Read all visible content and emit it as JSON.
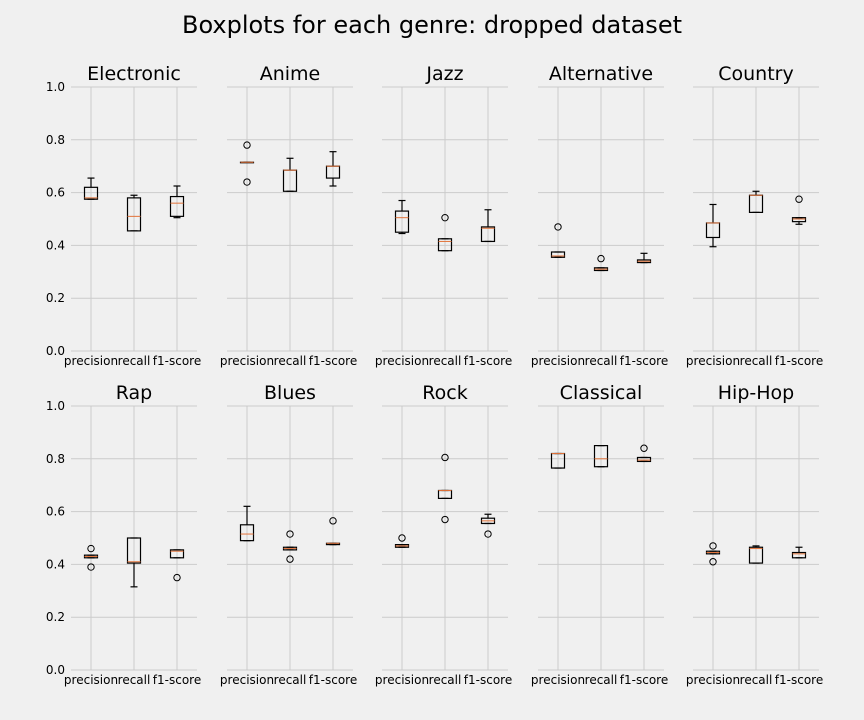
{
  "figure": {
    "title": "Boxplots for each genre: dropped dataset"
  },
  "chart_data": {
    "type": "boxplot",
    "title": "Boxplots for each genre: dropped dataset",
    "categories": [
      "precision",
      "recall",
      "f1-score"
    ],
    "ylim": [
      0.0,
      1.0
    ],
    "yticks": [
      "0.0",
      "0.2",
      "0.4",
      "0.6",
      "0.8",
      "1.0"
    ],
    "grid": true,
    "panels": [
      {
        "title": "Electronic",
        "boxes": [
          {
            "whislo": 0.575,
            "q1": 0.575,
            "med": 0.58,
            "q3": 0.62,
            "whishi": 0.655,
            "fliers": []
          },
          {
            "whislo": 0.455,
            "q1": 0.455,
            "med": 0.51,
            "q3": 0.58,
            "whishi": 0.59,
            "fliers": []
          },
          {
            "whislo": 0.505,
            "q1": 0.51,
            "med": 0.56,
            "q3": 0.585,
            "whishi": 0.625,
            "fliers": []
          }
        ]
      },
      {
        "title": "Anime",
        "boxes": [
          {
            "whislo": 0.715,
            "q1": 0.715,
            "med": 0.715,
            "q3": 0.715,
            "whishi": 0.715,
            "fliers": [
              0.78,
              0.64
            ]
          },
          {
            "whislo": 0.605,
            "q1": 0.605,
            "med": 0.685,
            "q3": 0.685,
            "whishi": 0.73,
            "fliers": []
          },
          {
            "whislo": 0.625,
            "q1": 0.655,
            "med": 0.7,
            "q3": 0.7,
            "whishi": 0.755,
            "fliers": []
          }
        ]
      },
      {
        "title": "Jazz",
        "boxes": [
          {
            "whislo": 0.445,
            "q1": 0.45,
            "med": 0.505,
            "q3": 0.53,
            "whishi": 0.57,
            "fliers": []
          },
          {
            "whislo": 0.38,
            "q1": 0.38,
            "med": 0.415,
            "q3": 0.425,
            "whishi": 0.425,
            "fliers": [
              0.505
            ]
          },
          {
            "whislo": 0.415,
            "q1": 0.415,
            "med": 0.465,
            "q3": 0.47,
            "whishi": 0.535,
            "fliers": []
          }
        ]
      },
      {
        "title": "Alternative",
        "boxes": [
          {
            "whislo": 0.355,
            "q1": 0.355,
            "med": 0.36,
            "q3": 0.375,
            "whishi": 0.375,
            "fliers": [
              0.47
            ]
          },
          {
            "whislo": 0.305,
            "q1": 0.305,
            "med": 0.31,
            "q3": 0.315,
            "whishi": 0.315,
            "fliers": [
              0.35
            ]
          },
          {
            "whislo": 0.335,
            "q1": 0.335,
            "med": 0.34,
            "q3": 0.345,
            "whishi": 0.37,
            "fliers": []
          }
        ]
      },
      {
        "title": "Country",
        "boxes": [
          {
            "whislo": 0.395,
            "q1": 0.43,
            "med": 0.485,
            "q3": 0.485,
            "whishi": 0.555,
            "fliers": []
          },
          {
            "whislo": 0.525,
            "q1": 0.525,
            "med": 0.59,
            "q3": 0.59,
            "whishi": 0.605,
            "fliers": []
          },
          {
            "whislo": 0.48,
            "q1": 0.49,
            "med": 0.5,
            "q3": 0.505,
            "whishi": 0.505,
            "fliers": [
              0.575
            ]
          }
        ]
      },
      {
        "title": "Rap",
        "boxes": [
          {
            "whislo": 0.425,
            "q1": 0.425,
            "med": 0.43,
            "q3": 0.435,
            "whishi": 0.435,
            "fliers": [
              0.46,
              0.39
            ]
          },
          {
            "whislo": 0.315,
            "q1": 0.405,
            "med": 0.41,
            "q3": 0.5,
            "whishi": 0.5,
            "fliers": []
          },
          {
            "whislo": 0.425,
            "q1": 0.425,
            "med": 0.45,
            "q3": 0.455,
            "whishi": 0.455,
            "fliers": [
              0.35
            ]
          }
        ]
      },
      {
        "title": "Blues",
        "boxes": [
          {
            "whislo": 0.49,
            "q1": 0.49,
            "med": 0.515,
            "q3": 0.55,
            "whishi": 0.62,
            "fliers": []
          },
          {
            "whislo": 0.455,
            "q1": 0.455,
            "med": 0.46,
            "q3": 0.465,
            "whishi": 0.465,
            "fliers": [
              0.515,
              0.42
            ]
          },
          {
            "whislo": 0.475,
            "q1": 0.475,
            "med": 0.48,
            "q3": 0.48,
            "whishi": 0.48,
            "fliers": [
              0.565
            ]
          }
        ]
      },
      {
        "title": "Rock",
        "boxes": [
          {
            "whislo": 0.465,
            "q1": 0.465,
            "med": 0.47,
            "q3": 0.475,
            "whishi": 0.475,
            "fliers": [
              0.5
            ]
          },
          {
            "whislo": 0.65,
            "q1": 0.65,
            "med": 0.68,
            "q3": 0.68,
            "whishi": 0.68,
            "fliers": [
              0.805,
              0.57
            ]
          },
          {
            "whislo": 0.555,
            "q1": 0.555,
            "med": 0.565,
            "q3": 0.575,
            "whishi": 0.59,
            "fliers": [
              0.515
            ]
          }
        ]
      },
      {
        "title": "Classical",
        "boxes": [
          {
            "whislo": 0.765,
            "q1": 0.765,
            "med": 0.82,
            "q3": 0.82,
            "whishi": 0.82,
            "fliers": []
          },
          {
            "whislo": 0.77,
            "q1": 0.77,
            "med": 0.8,
            "q3": 0.85,
            "whishi": 0.85,
            "fliers": []
          },
          {
            "whislo": 0.79,
            "q1": 0.79,
            "med": 0.795,
            "q3": 0.805,
            "whishi": 0.805,
            "fliers": [
              0.84
            ]
          }
        ]
      },
      {
        "title": "Hip-Hop",
        "boxes": [
          {
            "whislo": 0.44,
            "q1": 0.44,
            "med": 0.445,
            "q3": 0.45,
            "whishi": 0.45,
            "fliers": [
              0.47,
              0.41
            ]
          },
          {
            "whislo": 0.405,
            "q1": 0.405,
            "med": 0.46,
            "q3": 0.465,
            "whishi": 0.47,
            "fliers": []
          },
          {
            "whislo": 0.425,
            "q1": 0.425,
            "med": 0.44,
            "q3": 0.445,
            "whishi": 0.465,
            "fliers": []
          }
        ]
      }
    ]
  },
  "colors": {
    "background": "#f0f0f0",
    "grid": "#cbcbcb",
    "box": "#000000",
    "median": "#e2733a",
    "text": "#000000"
  }
}
